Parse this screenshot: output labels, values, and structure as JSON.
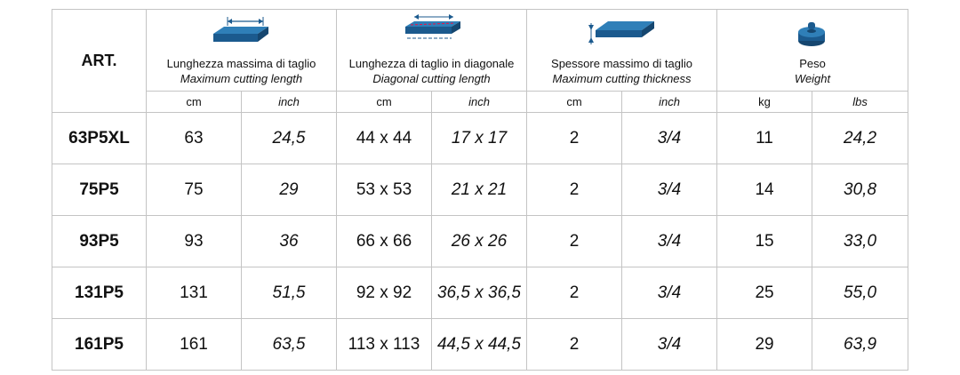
{
  "table": {
    "header": {
      "art": "ART.",
      "groups": [
        {
          "it": "Lunghezza massima di taglio",
          "en": "Maximum cutting length"
        },
        {
          "it": "Lunghezza di taglio in diagonale",
          "en": "Diagonal cutting length"
        },
        {
          "it": "Spessore massimo di taglio",
          "en": "Maximum cutting thickness"
        },
        {
          "it": "Peso",
          "en": "Weight"
        }
      ]
    },
    "units": [
      "cm",
      "inch",
      "cm",
      "inch",
      "cm",
      "inch",
      "kg",
      "lbs"
    ],
    "rows": [
      [
        "63P5XL",
        "63",
        "24,5",
        "44 x 44",
        "17 x 17",
        "2",
        "3/4",
        "11",
        "24,2"
      ],
      [
        "75P5",
        "75",
        "29",
        "53 x 53",
        "21 x 21",
        "2",
        "3/4",
        "14",
        "30,8"
      ],
      [
        "93P5",
        "93",
        "36",
        "66 x 66",
        "26 x 26",
        "2",
        "3/4",
        "15",
        "33,0"
      ],
      [
        "131P5",
        "131",
        "51,5",
        "92 x 92",
        "36,5 x 36,5",
        "2",
        "3/4",
        "25",
        "55,0"
      ],
      [
        "161P5",
        "161",
        "63,5",
        "113 x 113",
        "44,5 x 44,5",
        "2",
        "3/4",
        "29",
        "63,9"
      ]
    ]
  }
}
